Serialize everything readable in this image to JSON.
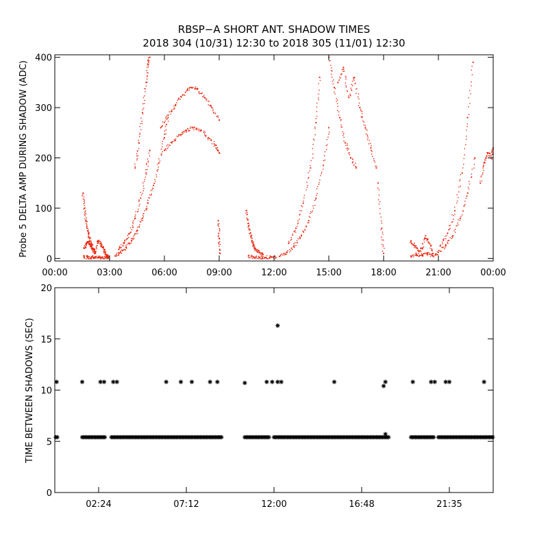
{
  "title": {
    "line1": "RBSP−A SHORT ANT. SHADOW TIMES",
    "line2": "2018 304 (10/31) 12:30 to 2018 305 (11/01) 12:30"
  },
  "colors": {
    "amp": "#e8240c",
    "gap": "#000000",
    "axis": "#000000"
  },
  "chart_data": [
    {
      "type": "scatter",
      "ylabel": "Probe 5 DELTA AMP DURING SHADOW (ADC)",
      "xlabel": "",
      "xlim": [
        0,
        24
      ],
      "ylim": [
        -5,
        405
      ],
      "x_ticks": [
        0,
        3,
        6,
        9,
        12,
        15,
        18,
        21,
        24
      ],
      "x_tick_labels": [
        "00:00",
        "03:00",
        "06:00",
        "09:00",
        "12:00",
        "15:00",
        "18:00",
        "21:00",
        "00:00"
      ],
      "y_ticks": [
        0,
        100,
        200,
        300,
        400
      ],
      "y_tick_labels": [
        "0",
        "100",
        "200",
        "300",
        "400"
      ],
      "marker": "dot",
      "series": [
        {
          "name": "pass1_branch_upper",
          "x": [
            1.55,
            1.62,
            1.7,
            1.8,
            1.9,
            2.0,
            2.1,
            2.2
          ],
          "y": [
            130,
            100,
            75,
            55,
            40,
            28,
            18,
            10
          ]
        },
        {
          "name": "pass1_loop",
          "x": [
            1.6,
            1.7,
            1.8,
            1.9,
            2.0,
            2.1,
            2.2,
            2.35,
            2.5,
            2.6,
            2.7,
            2.8,
            2.9
          ],
          "y": [
            20,
            28,
            32,
            30,
            25,
            20,
            14,
            35,
            30,
            22,
            15,
            8,
            3
          ]
        },
        {
          "name": "pass1_bottom",
          "x": [
            1.6,
            1.8,
            2.0,
            2.2,
            2.4,
            2.6,
            2.8,
            2.95
          ],
          "y": [
            3,
            2,
            2,
            3,
            2,
            1,
            2,
            3
          ]
        },
        {
          "name": "pass2_branch_lower",
          "x": [
            3.3,
            3.6,
            3.9,
            4.2,
            4.5,
            4.8,
            5.1,
            5.4,
            5.7,
            6.0,
            6.2
          ],
          "y": [
            5,
            12,
            22,
            35,
            55,
            80,
            110,
            145,
            190,
            240,
            280
          ]
        },
        {
          "name": "pass2_branch_mid",
          "x": [
            3.5,
            3.8,
            4.1,
            4.4,
            4.7,
            5.0,
            5.2
          ],
          "y": [
            18,
            30,
            50,
            80,
            120,
            170,
            215
          ]
        },
        {
          "name": "pass2_branch_upper",
          "x": [
            4.4,
            4.6,
            4.8,
            5.0,
            5.1,
            5.2
          ],
          "y": [
            180,
            230,
            290,
            350,
            385,
            400
          ]
        },
        {
          "name": "pass2_hump_top",
          "x": [
            5.8,
            6.2,
            6.6,
            7.0,
            7.4,
            7.8,
            8.2,
            8.6,
            9.0
          ],
          "y": [
            260,
            285,
            305,
            325,
            340,
            338,
            320,
            300,
            275
          ]
        },
        {
          "name": "pass2_hump_bottom",
          "x": [
            6.0,
            6.4,
            6.8,
            7.2,
            7.6,
            8.0,
            8.4,
            8.8,
            9.0
          ],
          "y": [
            215,
            230,
            245,
            255,
            260,
            255,
            240,
            225,
            210
          ]
        },
        {
          "name": "pass2_end",
          "x": [
            8.95,
            9.0,
            9.05
          ],
          "y": [
            75,
            40,
            10
          ]
        },
        {
          "name": "pass3_branch_upper",
          "x": [
            10.5,
            10.6,
            10.7,
            10.8,
            10.9,
            11.0,
            11.2,
            11.4
          ],
          "y": [
            95,
            70,
            50,
            35,
            25,
            18,
            12,
            8
          ]
        },
        {
          "name": "pass3_bottom",
          "x": [
            10.6,
            10.9,
            11.2,
            11.5,
            11.8,
            12.1
          ],
          "y": [
            5,
            3,
            2,
            2,
            3,
            2
          ]
        },
        {
          "name": "pass4_branch_lower",
          "x": [
            12.3,
            12.7,
            13.1,
            13.5,
            13.9,
            14.3,
            14.7,
            15.0
          ],
          "y": [
            4,
            12,
            25,
            45,
            75,
            120,
            185,
            260
          ]
        },
        {
          "name": "pass4_branch_upper",
          "x": [
            12.8,
            13.2,
            13.6,
            14.0,
            14.3,
            14.5
          ],
          "y": [
            30,
            60,
            110,
            180,
            270,
            360
          ]
        },
        {
          "name": "pass4_spread_a",
          "x": [
            15.0,
            15.3,
            15.6,
            15.9,
            16.2,
            16.5
          ],
          "y": [
            400,
            340,
            280,
            230,
            200,
            180
          ]
        },
        {
          "name": "pass4_spread_b",
          "x": [
            15.5,
            15.8,
            16.1,
            16.4,
            16.7,
            17.0,
            17.3,
            17.6
          ],
          "y": [
            350,
            380,
            320,
            360,
            300,
            260,
            220,
            180
          ]
        },
        {
          "name": "pass4_end",
          "x": [
            17.7,
            17.9,
            18.0
          ],
          "y": [
            150,
            60,
            10
          ]
        },
        {
          "name": "pass5_loop",
          "x": [
            19.5,
            19.7,
            19.9,
            20.1,
            20.3,
            20.5,
            20.7
          ],
          "y": [
            35,
            25,
            15,
            20,
            45,
            30,
            10
          ]
        },
        {
          "name": "pass5_bottom",
          "x": [
            19.5,
            19.8,
            20.1,
            20.4,
            20.7
          ],
          "y": [
            5,
            8,
            6,
            10,
            5
          ]
        },
        {
          "name": "pass6_branch_lower",
          "x": [
            20.7,
            21.0,
            21.4,
            21.8,
            22.2,
            22.6,
            23.0
          ],
          "y": [
            5,
            12,
            25,
            45,
            80,
            130,
            200
          ]
        },
        {
          "name": "pass6_branch_upper",
          "x": [
            21.1,
            21.5,
            21.9,
            22.3,
            22.6,
            22.9
          ],
          "y": [
            25,
            50,
            95,
            170,
            280,
            390
          ]
        },
        {
          "name": "pass6_tail",
          "x": [
            23.3,
            23.5,
            23.7,
            23.9,
            24.0
          ],
          "y": [
            150,
            190,
            210,
            200,
            220
          ]
        }
      ]
    },
    {
      "type": "scatter",
      "ylabel": "TIME BETWEEN SHADOWS (SEC)",
      "xlabel": "",
      "xlim": [
        0,
        24
      ],
      "ylim": [
        0,
        20
      ],
      "x_ticks": [
        2.4,
        7.2,
        12.0,
        16.8,
        21.6
      ],
      "x_tick_labels": [
        "02:24",
        "07:12",
        "12:00",
        "16:48",
        "21:35"
      ],
      "y_ticks": [
        0,
        5,
        10,
        15,
        20
      ],
      "y_tick_labels": [
        "0",
        "5",
        "10",
        "15",
        "20"
      ],
      "marker": "asterisk",
      "baseline": {
        "y": 5.4,
        "runs": [
          [
            0.05,
            0.15
          ],
          [
            1.5,
            2.8
          ],
          [
            3.1,
            9.2
          ],
          [
            10.4,
            11.8
          ],
          [
            12.0,
            18.3
          ],
          [
            19.5,
            20.8
          ],
          [
            21.0,
            24.0
          ]
        ]
      },
      "extra_points": {
        "x": [
          0.1,
          1.5,
          2.5,
          2.7,
          3.2,
          3.4,
          6.1,
          6.9,
          7.5,
          8.5,
          8.9,
          10.4,
          11.6,
          11.9,
          12.2,
          12.4,
          12.2,
          15.3,
          18.0,
          18.1,
          18.1,
          19.6,
          20.6,
          20.8,
          21.4,
          21.6,
          23.5
        ],
        "y": [
          10.8,
          10.8,
          10.8,
          10.8,
          10.8,
          10.8,
          10.8,
          10.8,
          10.8,
          10.8,
          10.8,
          10.7,
          10.8,
          10.8,
          10.8,
          10.8,
          16.3,
          10.8,
          10.4,
          10.8,
          5.7,
          10.8,
          10.8,
          10.8,
          10.8,
          10.8,
          10.8
        ]
      }
    }
  ]
}
